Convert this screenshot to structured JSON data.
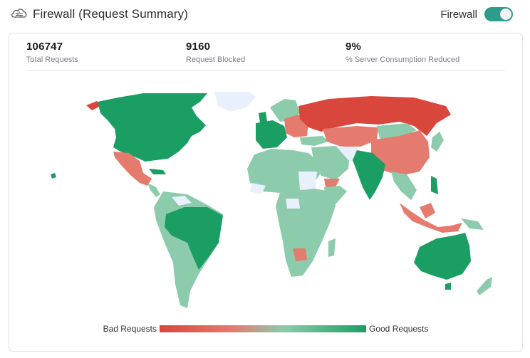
{
  "header": {
    "title": "Firewall (Request Summary)",
    "toggle_label": "Firewall",
    "toggle_on": true
  },
  "stats": [
    {
      "value": "106747",
      "label": "Total Requests"
    },
    {
      "value": "9160",
      "label": "Request Blocked"
    },
    {
      "value": "9%",
      "label": "% Server Consumption Reduced"
    }
  ],
  "legend": {
    "low_label": "Bad Requests",
    "high_label": "Good Requests"
  },
  "colors": {
    "bad": "#d9463b",
    "bad_light": "#e57a6e",
    "good_light": "#8ccbab",
    "good": "#1b9e63",
    "no_data": "#e8f0fb"
  }
}
